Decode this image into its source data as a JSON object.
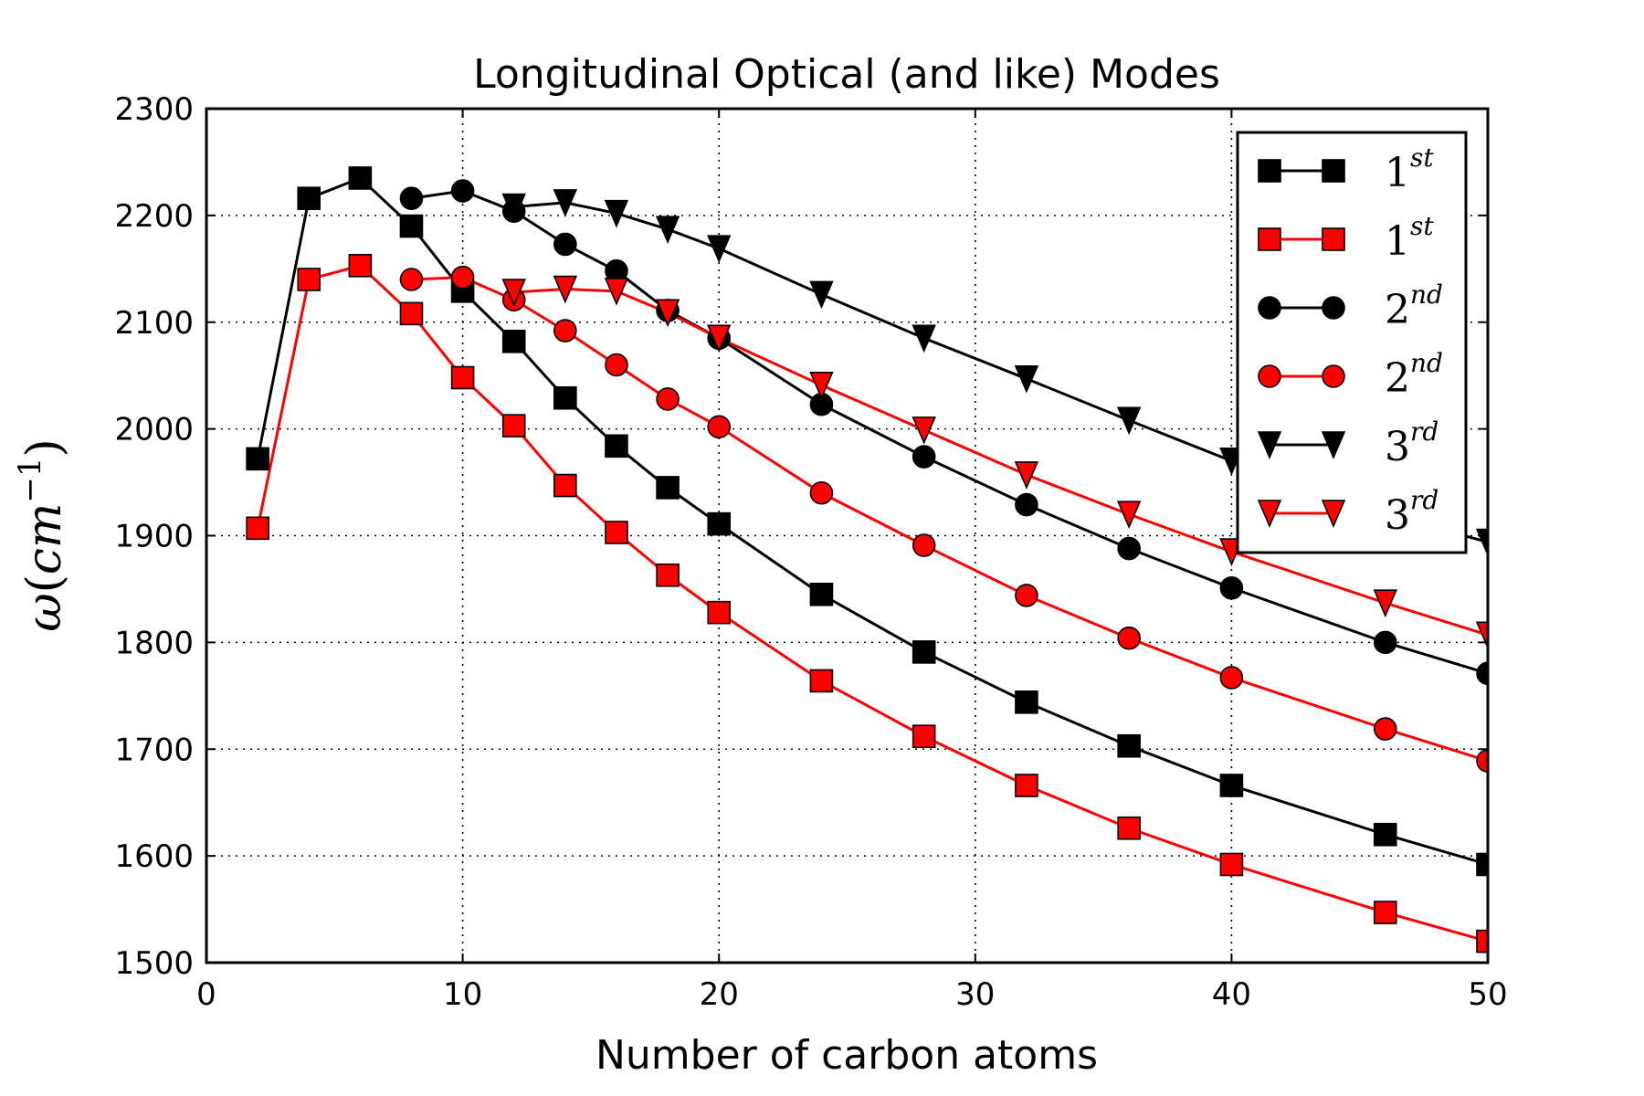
{
  "chart_data": {
    "type": "line",
    "title": "Longitudinal Optical (and like) Modes",
    "xlabel": "Number of carbon atoms",
    "ylabel": {
      "symbol": "ω",
      "open": "(",
      "unit": "cm",
      "exp": "−1",
      "close": ")"
    },
    "xlim": [
      0,
      50
    ],
    "ylim": [
      1500,
      2300
    ],
    "xticks": [
      0,
      10,
      20,
      30,
      40,
      50
    ],
    "yticks": [
      1500,
      1600,
      1700,
      1800,
      1900,
      2000,
      2100,
      2200,
      2300
    ],
    "grid": true,
    "legend_position": "top-right",
    "series": [
      {
        "name": "1st",
        "base": "1",
        "sup": "st",
        "color": "#000000",
        "marker": "square",
        "x": [
          2,
          4,
          6,
          8,
          10,
          12,
          14,
          16,
          18,
          20,
          24,
          28,
          32,
          36,
          40,
          46,
          50
        ],
        "y": [
          1972,
          2216,
          2235,
          2190,
          2129,
          2082,
          2029,
          1984,
          1945,
          1911,
          1845,
          1791,
          1744,
          1703,
          1666,
          1620,
          1592
        ]
      },
      {
        "name": "1st",
        "base": "1",
        "sup": "st",
        "color": "#ff0000",
        "marker": "square",
        "x": [
          2,
          4,
          6,
          8,
          10,
          12,
          14,
          16,
          18,
          20,
          24,
          28,
          32,
          36,
          40,
          46,
          50
        ],
        "y": [
          1907,
          2140,
          2153,
          2108,
          2048,
          2003,
          1947,
          1903,
          1863,
          1828,
          1764,
          1712,
          1666,
          1626,
          1592,
          1547,
          1520
        ]
      },
      {
        "name": "2nd",
        "base": "2",
        "sup": "nd",
        "color": "#000000",
        "marker": "circle",
        "x": [
          8,
          10,
          12,
          14,
          16,
          18,
          20,
          24,
          28,
          32,
          36,
          40,
          46,
          50
        ],
        "y": [
          2216,
          2223,
          2204,
          2173,
          2148,
          2111,
          2085,
          2023,
          1974,
          1929,
          1888,
          1851,
          1800,
          1771
        ]
      },
      {
        "name": "2nd",
        "base": "2",
        "sup": "nd",
        "color": "#ff0000",
        "marker": "circle",
        "x": [
          8,
          10,
          12,
          14,
          16,
          18,
          20,
          24,
          28,
          32,
          36,
          40,
          46,
          50
        ],
        "y": [
          2140,
          2142,
          2121,
          2092,
          2060,
          2028,
          2002,
          1940,
          1891,
          1844,
          1804,
          1767,
          1719,
          1689
        ]
      },
      {
        "name": "3rd",
        "base": "3",
        "sup": "rd",
        "color": "#000000",
        "marker": "triangle-down",
        "x": [
          12,
          14,
          16,
          18,
          20,
          24,
          28,
          32,
          36,
          40,
          46,
          50
        ],
        "y": [
          2208,
          2212,
          2202,
          2187,
          2169,
          2126,
          2085,
          2047,
          2008,
          1970,
          1920,
          1894
        ]
      },
      {
        "name": "3rd",
        "base": "3",
        "sup": "rd",
        "color": "#ff0000",
        "marker": "triangle-down",
        "x": [
          12,
          14,
          16,
          18,
          20,
          24,
          28,
          32,
          36,
          40,
          46,
          50
        ],
        "y": [
          2128,
          2131,
          2129,
          2109,
          2085,
          2041,
          1999,
          1957,
          1920,
          1885,
          1837,
          1807
        ]
      }
    ]
  }
}
